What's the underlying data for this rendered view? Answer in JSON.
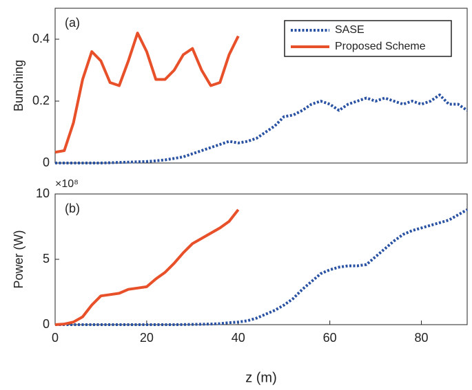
{
  "chart_data": [
    {
      "type": "line",
      "annotation": "(a)",
      "ylabel": "Bunching",
      "x": [
        0,
        2,
        4,
        6,
        8,
        10,
        12,
        14,
        16,
        18,
        20,
        22,
        24,
        26,
        28,
        30,
        32,
        34,
        36,
        38,
        40,
        42,
        44,
        46,
        48,
        50,
        52,
        54,
        56,
        58,
        60,
        62,
        64,
        66,
        68,
        70,
        72,
        74,
        76,
        78,
        80,
        82,
        84,
        86,
        88,
        90
      ],
      "xlim": [
        0,
        90
      ],
      "ylim": [
        0,
        0.5
      ],
      "yticks": [
        0,
        0.2,
        0.4
      ],
      "legend": "upper right",
      "series": [
        {
          "name": "SASE",
          "color": "#2a52a3",
          "style": "dotted",
          "values": [
            0,
            0,
            0,
            0,
            0,
            0,
            0.001,
            0.002,
            0.003,
            0.004,
            0.005,
            0.007,
            0.01,
            0.015,
            0.02,
            0.03,
            0.04,
            0.05,
            0.06,
            0.07,
            0.065,
            0.07,
            0.08,
            0.1,
            0.12,
            0.15,
            0.155,
            0.17,
            0.19,
            0.2,
            0.19,
            0.17,
            0.19,
            0.2,
            0.21,
            0.2,
            0.21,
            0.2,
            0.19,
            0.2,
            0.19,
            0.2,
            0.22,
            0.19,
            0.19,
            0.17
          ]
        },
        {
          "name": "Proposed Scheme",
          "color": "#e8502a",
          "style": "solid",
          "values": [
            0.035,
            0.04,
            0.13,
            0.27,
            0.36,
            0.33,
            0.26,
            0.25,
            0.33,
            0.42,
            0.36,
            0.27,
            0.27,
            0.3,
            0.35,
            0.37,
            0.3,
            0.25,
            0.26,
            0.35,
            0.41,
            null,
            null,
            null,
            null,
            null,
            null,
            null,
            null,
            null,
            null,
            null,
            null,
            null,
            null,
            null,
            null,
            null,
            null,
            null,
            null,
            null,
            null,
            null,
            null,
            null
          ]
        }
      ]
    },
    {
      "type": "line",
      "annotation": "(b)",
      "ylabel": "Power (W)",
      "y_multiplier": "×10⁸",
      "xlabel": "z (m)",
      "x": [
        0,
        2,
        4,
        6,
        8,
        10,
        12,
        14,
        16,
        18,
        20,
        22,
        24,
        26,
        28,
        30,
        32,
        34,
        36,
        38,
        40,
        42,
        44,
        46,
        48,
        50,
        52,
        54,
        56,
        58,
        60,
        62,
        64,
        66,
        68,
        70,
        72,
        74,
        76,
        78,
        80,
        82,
        84,
        86,
        88,
        90
      ],
      "xlim": [
        0,
        90
      ],
      "xticks": [
        0,
        20,
        40,
        60,
        80
      ],
      "ylim": [
        0,
        10
      ],
      "yticks": [
        0,
        5,
        10
      ],
      "series": [
        {
          "color": "#2a52a3",
          "style": "dotted",
          "values": [
            0,
            0,
            0,
            0,
            0,
            0,
            0,
            0,
            0,
            0,
            0,
            0,
            0,
            0,
            0.01,
            0.02,
            0.03,
            0.05,
            0.08,
            0.15,
            0.2,
            0.3,
            0.5,
            0.8,
            1.1,
            1.5,
            2.0,
            2.7,
            3.3,
            3.9,
            4.2,
            4.4,
            4.5,
            4.5,
            4.6,
            5.2,
            5.8,
            6.4,
            6.9,
            7.2,
            7.4,
            7.6,
            7.8,
            8.0,
            8.4,
            8.8
          ]
        },
        {
          "color": "#e8502a",
          "style": "solid",
          "values": [
            0,
            0.05,
            0.2,
            0.6,
            1.5,
            2.2,
            2.3,
            2.4,
            2.7,
            2.8,
            2.9,
            3.5,
            4,
            4.7,
            5.5,
            6.2,
            6.6,
            7,
            7.4,
            7.9,
            8.8,
            null,
            null,
            null,
            null,
            null,
            null,
            null,
            null,
            null,
            null,
            null,
            null,
            null,
            null,
            null,
            null,
            null,
            null,
            null,
            null,
            null,
            null,
            null,
            null,
            null
          ]
        }
      ]
    }
  ]
}
